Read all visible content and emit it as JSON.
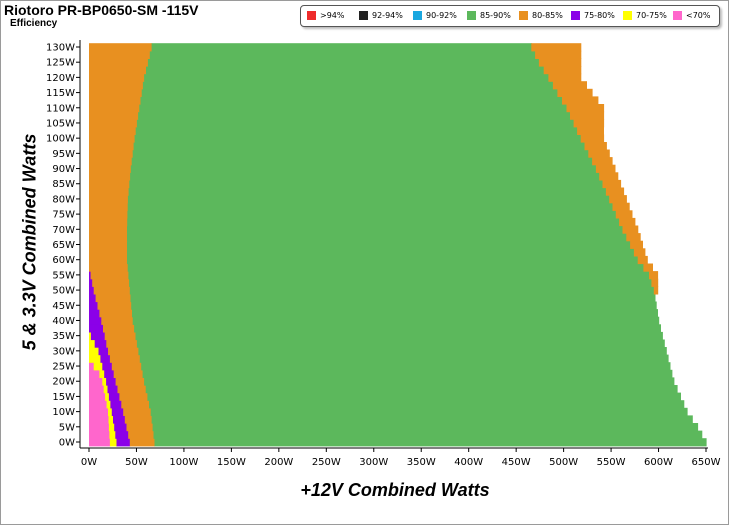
{
  "header": {
    "title": "Riotoro PR-BP0650-SM -115V",
    "subtitle": "Efficiency"
  },
  "legend": [
    {
      "label": ">94%",
      "color": "#ee2b2b"
    },
    {
      "label": "92-94%",
      "color": "#222222"
    },
    {
      "label": "90-92%",
      "color": "#1aa7e0"
    },
    {
      "label": "85-90%",
      "color": "#5cb85c"
    },
    {
      "label": "80-85%",
      "color": "#e89020"
    },
    {
      "label": "75-80%",
      "color": "#8b00e8"
    },
    {
      "label": "70-75%",
      "color": "#ffff00"
    },
    {
      "label": "<70%",
      "color": "#ff66cc"
    }
  ],
  "chart_data": {
    "type": "heatmap",
    "title": "Riotoro PR-BP0650-SM -115V",
    "subtitle": "Efficiency",
    "xlabel": "+12V Combined Watts",
    "ylabel": "5 & 3.3V Combined Watts",
    "xlim": [
      0,
      650
    ],
    "ylim": [
      0,
      130
    ],
    "row_step": 2.5,
    "x_ticks": [
      "0W",
      "50W",
      "100W",
      "150W",
      "200W",
      "250W",
      "300W",
      "350W",
      "400W",
      "450W",
      "500W",
      "550W",
      "600W",
      "650W"
    ],
    "y_ticks": [
      "0W",
      "5W",
      "10W",
      "15W",
      "20W",
      "25W",
      "30W",
      "35W",
      "40W",
      "45W",
      "50W",
      "55W",
      "60W",
      "65W",
      "70W",
      "75W",
      "80W",
      "85W",
      "90W",
      "95W",
      "100W",
      "105W",
      "110W",
      "115W",
      "120W",
      "125W",
      "130W"
    ],
    "efficiency_boundaries_note": "each point: y watts -> x watts where a band ends",
    "bands": {
      "<70%": [
        [
          0,
          22
        ],
        [
          10,
          20
        ],
        [
          20,
          14
        ],
        [
          22.5,
          11
        ],
        [
          25,
          5
        ],
        [
          27.5,
          0
        ]
      ],
      "70-75%": [
        [
          0,
          29
        ],
        [
          10,
          24
        ],
        [
          20,
          18
        ],
        [
          30,
          10
        ],
        [
          35,
          2
        ],
        [
          37.5,
          0
        ]
      ],
      "75-80%": [
        [
          0,
          43
        ],
        [
          10,
          36
        ],
        [
          20,
          28
        ],
        [
          30,
          20
        ],
        [
          40,
          13
        ],
        [
          50,
          5
        ],
        [
          57.5,
          0
        ]
      ],
      "80-85%": [
        [
          0,
          69
        ],
        [
          10,
          65
        ],
        [
          20,
          58
        ],
        [
          30,
          52
        ],
        [
          40,
          46
        ],
        [
          50,
          43
        ],
        [
          60,
          40
        ],
        [
          70,
          40
        ],
        [
          80,
          41
        ],
        [
          90,
          44
        ],
        [
          100,
          48
        ],
        [
          110,
          53
        ],
        [
          120,
          58
        ],
        [
          130,
          66
        ]
      ],
      "85-90%": [
        [
          0,
          650
        ],
        [
          5,
          641
        ],
        [
          10,
          630
        ],
        [
          20,
          616
        ],
        [
          30,
          608
        ],
        [
          40,
          600
        ],
        [
          50,
          595
        ],
        [
          55,
          590
        ],
        [
          60,
          578
        ],
        [
          70,
          562
        ],
        [
          80,
          548
        ],
        [
          90,
          534
        ],
        [
          100,
          518
        ],
        [
          110,
          503
        ],
        [
          120,
          484
        ],
        [
          125,
          474
        ],
        [
          130,
          466
        ]
      ],
      "80-85%-high": [
        [
          50,
          599
        ],
        [
          55,
          599
        ],
        [
          60,
          588
        ],
        [
          70,
          578
        ],
        [
          80,
          566
        ],
        [
          90,
          554
        ],
        [
          100,
          542
        ],
        [
          110,
          542
        ],
        [
          120,
          518
        ],
        [
          125,
          518
        ],
        [
          130,
          518
        ]
      ]
    }
  }
}
